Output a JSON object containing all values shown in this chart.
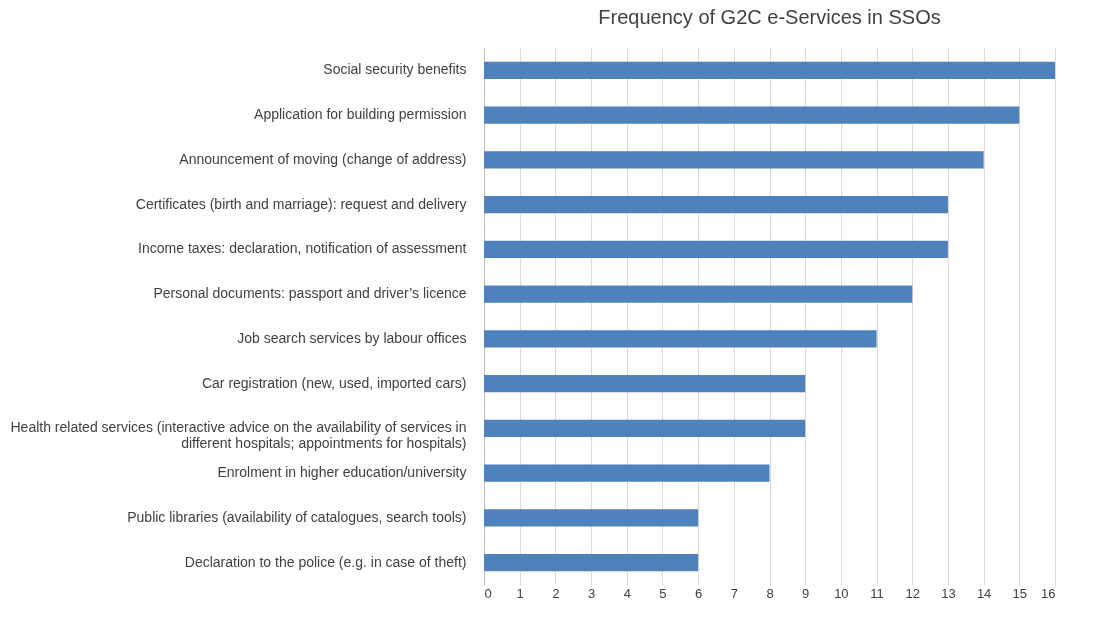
{
  "chart_data": {
    "type": "bar",
    "orientation": "horizontal",
    "title": "Frequency of G2C e-Services in SSOs",
    "categories": [
      "Social security benefits",
      "Application for building permission",
      "Announcement of moving (change of address)",
      "Certificates (birth and marriage): request and delivery",
      "Income taxes: declaration, notification of assessment",
      "Personal documents: passport and driver’s licence",
      "Job search services by labour offices",
      "Car registration (new, used, imported cars)",
      "Health related services (interactive advice on the availability of services in different hospitals; appointments for hospitals)",
      "Enrolment in higher education/university",
      "Public libraries (availability of catalogues, search tools)",
      "Declaration to the police (e.g. in case of theft)"
    ],
    "values": [
      16,
      15,
      14,
      13,
      13,
      12,
      11,
      9,
      9,
      8,
      6,
      6
    ],
    "color": "#4f81bd",
    "xlim": [
      0,
      16
    ],
    "xticks": [
      0,
      1,
      2,
      3,
      4,
      5,
      6,
      7,
      8,
      9,
      10,
      11,
      12,
      13,
      14,
      15,
      16
    ],
    "grid": "x"
  }
}
